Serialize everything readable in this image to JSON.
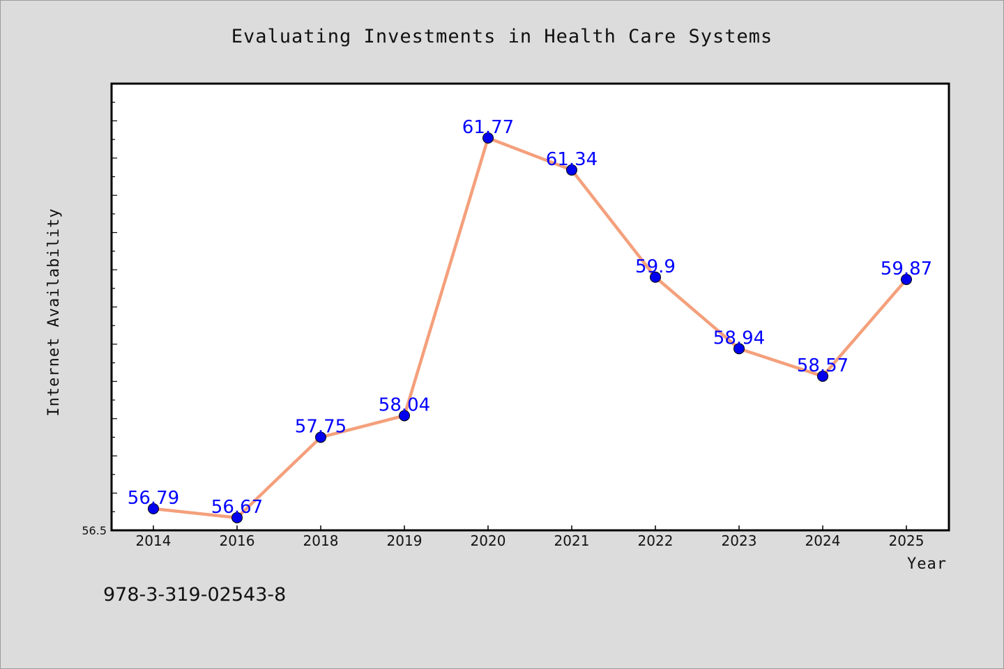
{
  "chart_data": {
    "type": "line",
    "title": "Evaluating Investments in Health Care Systems",
    "xlabel": "Year",
    "ylabel": "Internet Availability",
    "categories": [
      "2014",
      "2016",
      "2018",
      "2019",
      "2020",
      "2021",
      "2022",
      "2023",
      "2024",
      "2025"
    ],
    "series": [
      {
        "values": [
          56.79,
          56.67,
          57.75,
          58.04,
          61.77,
          61.34,
          59.9,
          58.94,
          58.57,
          59.87
        ],
        "labels": [
          "56.79",
          "56.67",
          "57.75",
          "58.04",
          "61.77",
          "61.34",
          "59.9",
          "58.94",
          "58.57",
          "59.87"
        ]
      }
    ],
    "ylim": [
      56.5,
      62.5
    ],
    "ytick_label": "56.5",
    "grid": false,
    "line_color": "#f4a07c",
    "marker_color": "#0000ee",
    "label_color": "#0000ff"
  },
  "footer": {
    "isbn": "978-3-319-02543-8"
  }
}
